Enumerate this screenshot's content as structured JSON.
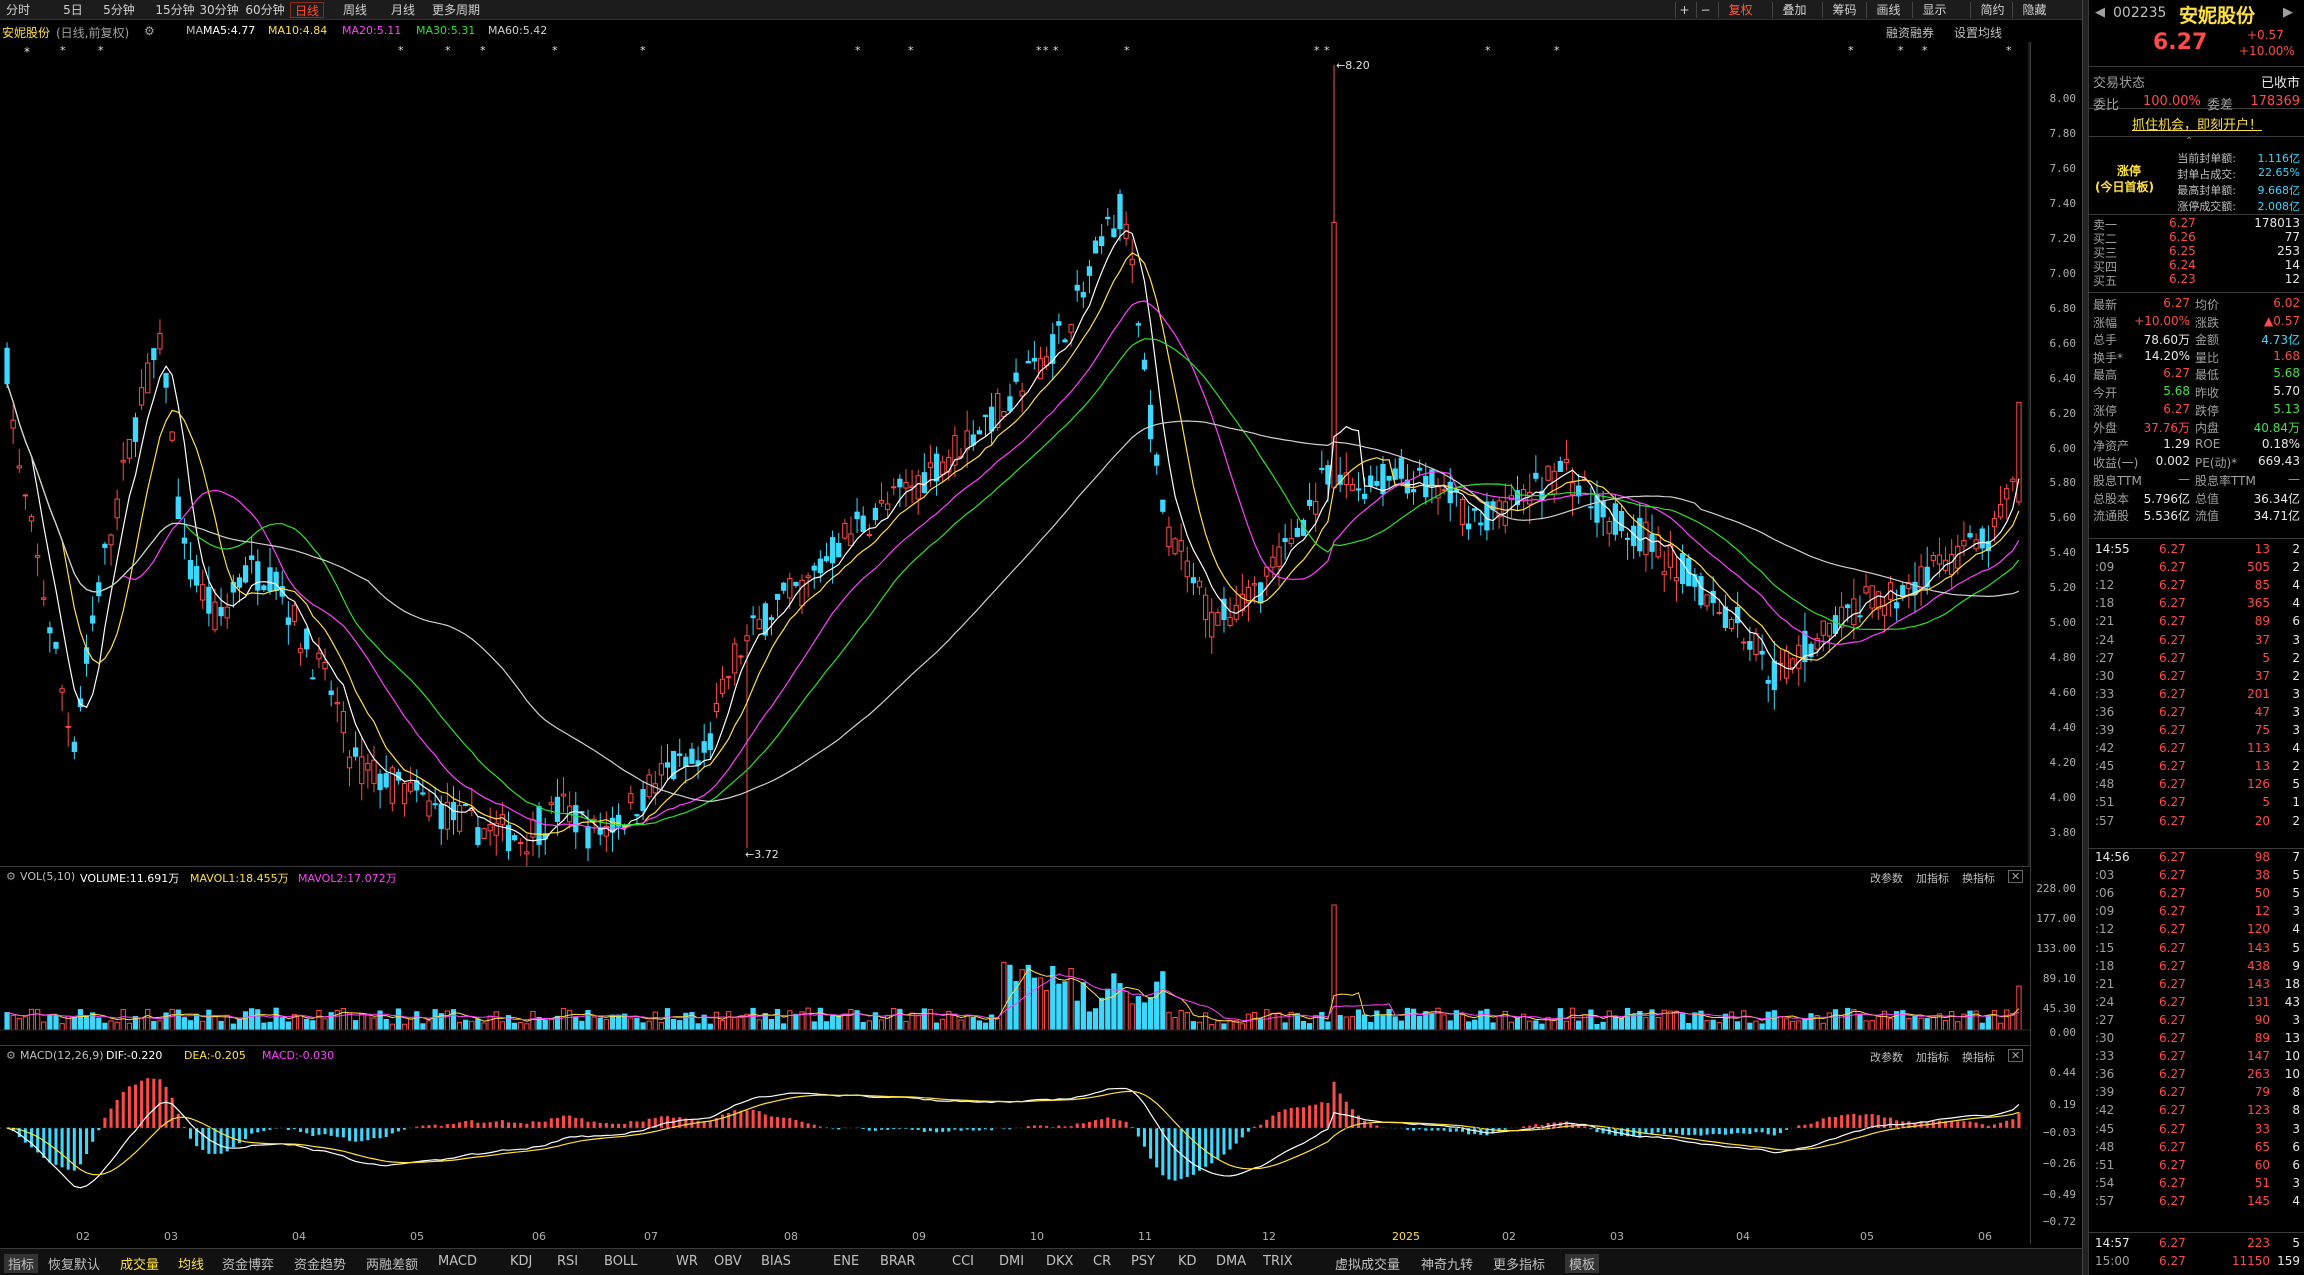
{
  "topbar": {
    "tabs": [
      "分时",
      "5日",
      "5分钟",
      "15分钟",
      "30分钟",
      "60分钟",
      "日线",
      "周线",
      "月线",
      "更多周期"
    ],
    "active": "日线",
    "right": [
      "+",
      "−",
      "复权",
      "叠加",
      "筹码",
      "画线",
      "显示",
      "简约",
      "隐藏"
    ]
  },
  "infobar": {
    "name": "安妮股份",
    "mode": "(日线,前复权)",
    "ma": "MA",
    "ma5": "MA5:4.77",
    "ma10": "MA10:4.84",
    "ma20": "MA20:5.11",
    "ma30": "MA30:5.31",
    "ma60": "MA60:5.42",
    "link1": "融资融券",
    "link2": "设置均线"
  },
  "yaxis": {
    "main": [
      "8.00",
      "7.80",
      "7.60",
      "7.40",
      "7.20",
      "7.00",
      "6.80",
      "6.60",
      "6.40",
      "6.20",
      "6.00",
      "5.80",
      "5.60",
      "5.40",
      "5.20",
      "5.00",
      "4.80",
      "4.60",
      "4.40",
      "4.20",
      "4.00",
      "3.80"
    ],
    "vol": [
      "228.00",
      "177.00",
      "133.00",
      "89.10",
      "45.30",
      "0.00"
    ],
    "macd": [
      "0.44",
      "0.19",
      "−0.03",
      "−0.26",
      "−0.49",
      "−0.72"
    ]
  },
  "xaxis": [
    "02",
    "03",
    "04",
    "05",
    "06",
    "07",
    "08",
    "09",
    "10",
    "11",
    "12",
    "2025",
    "02",
    "03",
    "04",
    "05",
    "06"
  ],
  "annot": {
    "high": "8.20",
    "low": "3.72"
  },
  "vol": {
    "title": "VOL(5,10)",
    "volume": "VOLUME:11.691万",
    "mavol1": "MAVOL1:18.455万",
    "mavol2": "MAVOL2:17.072万",
    "btn1": "改参数",
    "btn2": "加指标",
    "btn3": "换指标"
  },
  "macd": {
    "title": "MACD(12,26,9)",
    "dif": "DIF:-0.220",
    "dea": "DEA:-0.205",
    "macd": "MACD:-0.030",
    "btn1": "改参数",
    "btn2": "加指标",
    "btn3": "换指标"
  },
  "bottombar": [
    "指标",
    "恢复默认",
    "成交量",
    "均线",
    "资金博弈",
    "资金趋势",
    "两融差额",
    "MACD",
    "KDJ",
    "RSI",
    "BOLL",
    "WR",
    "OBV",
    "BIAS",
    "ENE",
    "BRAR",
    "CCI",
    "DMI",
    "DKX",
    "CR",
    "PSY",
    "KD",
    "DMA",
    "TRIX",
    "虚拟成交量",
    "神奇九转",
    "更多指标",
    "模板"
  ],
  "quote": {
    "code": "002235",
    "name": "安妮股份",
    "price": "6.27",
    "change": "+0.57",
    "pct": "+10.00%",
    "status_label": "交易状态",
    "status": "已收市",
    "wb_label": "委比",
    "wb": "100.00%",
    "wc_label": "委差",
    "wc": "178369",
    "promo": "抓住机会，即刻开户！",
    "limit_tag": "涨停",
    "limit_sub": "(今日首板)",
    "l1": "当前封单额:",
    "v1": "1.116亿",
    "l2": "封单占成交:",
    "v2": "22.65%",
    "l3": "最高封单额:",
    "v3": "9.668亿",
    "l4": "涨停成交额:",
    "v4": "2.008亿"
  },
  "orderbook": [
    {
      "label": "卖一",
      "price": "6.27",
      "vol": "178013"
    },
    {
      "label": "买二",
      "price": "6.26",
      "vol": "77"
    },
    {
      "label": "买三",
      "price": "6.25",
      "vol": "253"
    },
    {
      "label": "买四",
      "price": "6.24",
      "vol": "14"
    },
    {
      "label": "买五",
      "price": "6.23",
      "vol": "12"
    }
  ],
  "stats": [
    [
      "最新",
      "6.27",
      "均价",
      "6.02"
    ],
    [
      "涨幅",
      "+10.00%",
      "涨跌",
      "▲0.57"
    ],
    [
      "总手",
      "78.60万",
      "金额",
      "4.73亿"
    ],
    [
      "换手*",
      "14.20%",
      "量比",
      "1.68"
    ],
    [
      "最高",
      "6.27",
      "最低",
      "5.68"
    ],
    [
      "今开",
      "5.68",
      "昨收",
      "5.70"
    ],
    [
      "涨停",
      "6.27",
      "跌停",
      "5.13"
    ],
    [
      "外盘",
      "37.76万",
      "内盘",
      "40.84万"
    ],
    [
      "净资产",
      "1.29",
      "ROE",
      "0.18%"
    ],
    [
      "收益(一)",
      "0.002",
      "PE(动)*",
      "669.43"
    ],
    [
      "股息TTM",
      "—",
      "股息率TTM",
      "—"
    ],
    [
      "总股本",
      "5.796亿",
      "总值",
      "36.34亿"
    ],
    [
      "流通股",
      "5.536亿",
      "流值",
      "34.71亿"
    ]
  ],
  "ticks1": [
    [
      "14:55",
      "6.27",
      "13",
      "2"
    ],
    [
      ":09",
      "6.27",
      "505",
      "2"
    ],
    [
      ":12",
      "6.27",
      "85",
      "4"
    ],
    [
      ":18",
      "6.27",
      "365",
      "4"
    ],
    [
      ":21",
      "6.27",
      "89",
      "6"
    ],
    [
      ":24",
      "6.27",
      "37",
      "3"
    ],
    [
      ":27",
      "6.27",
      "5",
      "2"
    ],
    [
      ":30",
      "6.27",
      "37",
      "2"
    ],
    [
      ":33",
      "6.27",
      "201",
      "3"
    ],
    [
      ":36",
      "6.27",
      "47",
      "3"
    ],
    [
      ":39",
      "6.27",
      "75",
      "3"
    ],
    [
      ":42",
      "6.27",
      "113",
      "4"
    ],
    [
      ":45",
      "6.27",
      "13",
      "2"
    ],
    [
      ":48",
      "6.27",
      "126",
      "5"
    ],
    [
      ":51",
      "6.27",
      "5",
      "1"
    ],
    [
      ":57",
      "6.27",
      "20",
      "2"
    ]
  ],
  "ticks2": [
    [
      "14:56",
      "6.27",
      "98",
      "7"
    ],
    [
      ":03",
      "6.27",
      "38",
      "5"
    ],
    [
      ":06",
      "6.27",
      "50",
      "5"
    ],
    [
      ":09",
      "6.27",
      "12",
      "3"
    ],
    [
      ":12",
      "6.27",
      "120",
      "4"
    ],
    [
      ":15",
      "6.27",
      "143",
      "5"
    ],
    [
      ":18",
      "6.27",
      "438",
      "9"
    ],
    [
      ":21",
      "6.27",
      "143",
      "18"
    ],
    [
      ":24",
      "6.27",
      "131",
      "43"
    ],
    [
      ":27",
      "6.27",
      "90",
      "3"
    ],
    [
      ":30",
      "6.27",
      "89",
      "13"
    ],
    [
      ":33",
      "6.27",
      "147",
      "10"
    ],
    [
      ":36",
      "6.27",
      "263",
      "10"
    ],
    [
      ":39",
      "6.27",
      "79",
      "8"
    ],
    [
      ":42",
      "6.27",
      "123",
      "8"
    ],
    [
      ":45",
      "6.27",
      "33",
      "3"
    ],
    [
      ":48",
      "6.27",
      "65",
      "6"
    ],
    [
      ":51",
      "6.27",
      "60",
      "6"
    ],
    [
      ":54",
      "6.27",
      "51",
      "3"
    ],
    [
      ":57",
      "6.27",
      "145",
      "4"
    ]
  ],
  "ticks3": [
    [
      "14:57",
      "6.27",
      "223",
      "5"
    ],
    [
      "15:00",
      "6.27",
      "11150",
      "159"
    ]
  ],
  "colors": {
    "up": "#ff4a4a",
    "down": "#3cd8ff",
    "ma5": "#ffffff",
    "ma10": "#ffe040",
    "ma20": "#ff40ff",
    "ma30": "#30e030",
    "ma60": "#d0d0d0"
  }
}
